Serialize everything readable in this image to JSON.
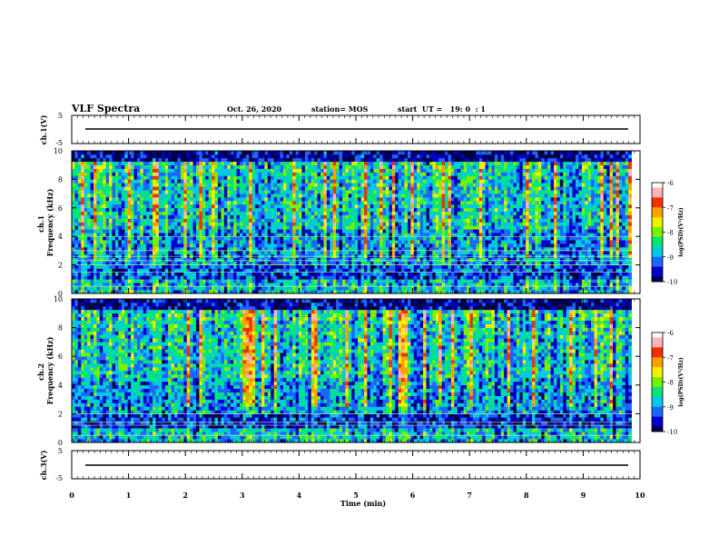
{
  "header": {
    "title": "VLF Spectra",
    "date": "Oct. 26, 2020",
    "station": "station= MOS",
    "start": "start  UT =   19: 0  : 1"
  },
  "colormap": [
    "#00004a",
    "#0000c8",
    "#1e64ff",
    "#00c8e6",
    "#00e678",
    "#78f000",
    "#f0f000",
    "#ffa000",
    "#f03000",
    "#ffb4b4",
    "#ffffff"
  ],
  "chart_data": [
    {
      "type": "line",
      "panel": "ch1-waveform",
      "ylabel": "ch.1(V)",
      "ylim": [
        -5,
        5
      ],
      "yticks": [
        "5",
        "-5"
      ],
      "xlim": [
        0,
        10
      ],
      "value": -1,
      "grid": false
    },
    {
      "type": "heatmap",
      "panel": "ch1-spectrogram",
      "ylabel": "ch.1\nFrequency (kHz)",
      "ylim": [
        0,
        10
      ],
      "yticks": [
        "0",
        "2",
        "4",
        "6",
        "8",
        "10"
      ],
      "xlim": [
        0,
        9.85
      ],
      "colorbar": {
        "label": "log(PSD)(V²/Hz)",
        "ticks": [
          "-6",
          "-7",
          "-8",
          "-9",
          "-10"
        ],
        "range": [
          -10,
          -6
        ]
      },
      "lines_khz": [
        0.5,
        1.5,
        2.0,
        2.3,
        2.6,
        3.0,
        4.0
      ]
    },
    {
      "type": "heatmap",
      "panel": "ch2-spectrogram",
      "ylabel": "ch.2\nFrequency (kHz)",
      "ylim": [
        0,
        10
      ],
      "yticks": [
        "0",
        "2",
        "4",
        "6",
        "8",
        "10"
      ],
      "xlim": [
        0,
        9.85
      ],
      "colorbar": {
        "label": "log(PSD)(V²/Hz)",
        "ticks": [
          "-6",
          "-7",
          "-8",
          "-9",
          "-10"
        ],
        "range": [
          -10,
          -6
        ]
      },
      "lines_khz": [
        0.5,
        1.2,
        1.4,
        2.0
      ]
    },
    {
      "type": "line",
      "panel": "ch3-waveform",
      "ylabel": "ch.3(V)",
      "ylim": [
        -5,
        5
      ],
      "yticks": [
        "5",
        "-5"
      ],
      "xlim": [
        0,
        10
      ],
      "value": -1,
      "grid": false
    }
  ],
  "xaxis": {
    "label": "Time (min)",
    "ticks": [
      "0",
      "1",
      "2",
      "3",
      "4",
      "5",
      "6",
      "7",
      "8",
      "9",
      "10"
    ],
    "range": [
      0,
      10
    ]
  }
}
